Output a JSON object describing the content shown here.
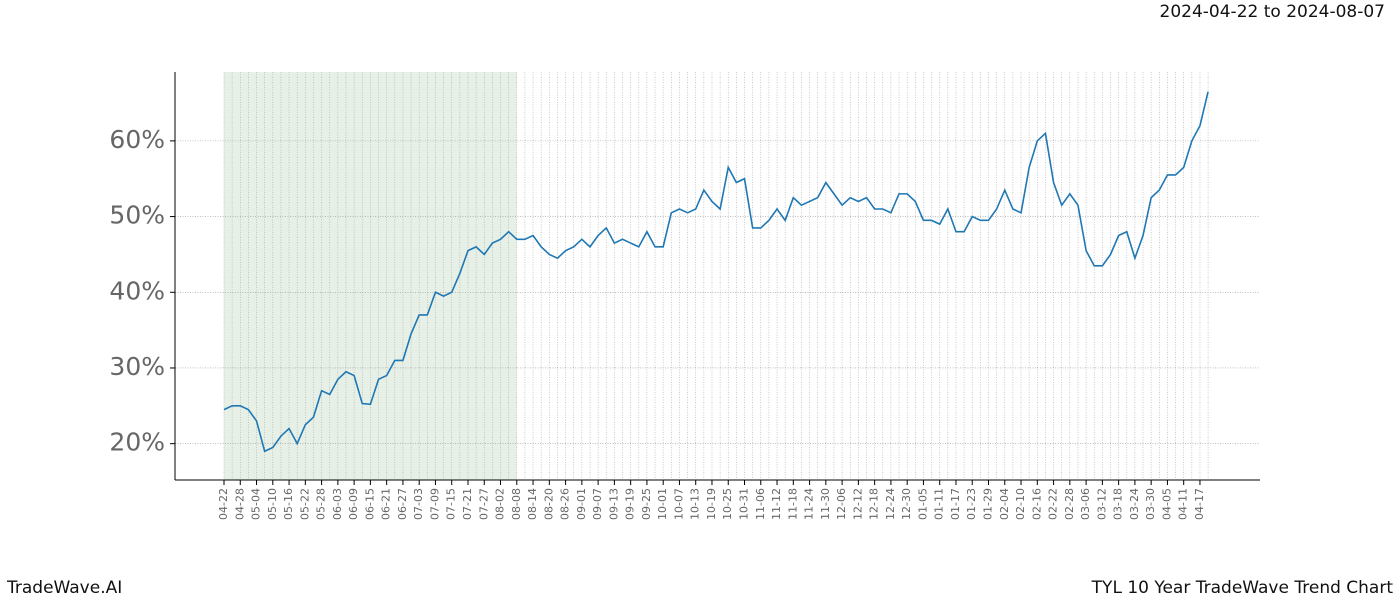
{
  "chart_data": {
    "type": "line",
    "subtitle": "2024-04-22 to 2024-08-07",
    "footer_left": "TradeWave.AI",
    "footer_right": "TYL 10 Year TradeWave Trend Chart",
    "categories": [
      "04-22",
      null,
      "04-28",
      null,
      "05-04",
      null,
      "05-10",
      null,
      "05-16",
      null,
      "05-22",
      null,
      "05-28",
      null,
      "06-03",
      null,
      "06-09",
      null,
      "06-15",
      null,
      "06-21",
      null,
      "06-27",
      null,
      "07-03",
      null,
      "07-09",
      null,
      "07-15",
      null,
      "07-21",
      null,
      "07-27",
      null,
      "08-02",
      null,
      "08-08",
      null,
      "08-14",
      null,
      "08-20",
      null,
      "08-26",
      null,
      "09-01",
      null,
      "09-07",
      null,
      "09-13",
      null,
      "09-19",
      null,
      "09-25",
      null,
      "10-01",
      null,
      "10-07",
      null,
      "10-13",
      null,
      "10-19",
      null,
      "10-25",
      null,
      "10-31",
      null,
      "11-06",
      null,
      "11-12",
      null,
      "11-18",
      null,
      "11-24",
      null,
      "11-30",
      null,
      "12-06",
      null,
      "12-12",
      null,
      "12-18",
      null,
      "12-24",
      null,
      "12-30",
      null,
      "01-05",
      null,
      "01-11",
      null,
      "01-17",
      null,
      "01-23",
      null,
      "01-29",
      null,
      "02-04",
      null,
      "02-10",
      null,
      "02-16",
      null,
      "02-22",
      null,
      "02-28",
      null,
      "03-06",
      null,
      "03-12",
      null,
      "03-18",
      null,
      "03-24",
      null,
      "03-30",
      null,
      "04-05",
      null,
      "04-11",
      null,
      "04-17",
      null
    ],
    "series": [
      {
        "color": "#1f77b4",
        "values": [
          24.5,
          25,
          25,
          24.5,
          23,
          19,
          19.5,
          21,
          22,
          20,
          22.5,
          23.5,
          27,
          26.5,
          28.5,
          29.5,
          29,
          25.3,
          25.2,
          28.5,
          29,
          31,
          31,
          34.5,
          37,
          37,
          40,
          39.5,
          40,
          42.5,
          45.5,
          46,
          45,
          46.5,
          47,
          48,
          47,
          47,
          47.5,
          46,
          45,
          44.5,
          45.5,
          46,
          47,
          46,
          47.5,
          48.5,
          46.5,
          47,
          46.5,
          46,
          48,
          46,
          46,
          50.5,
          51,
          50.5,
          51,
          53.5,
          52,
          51,
          56.5,
          54.5,
          55,
          48.5,
          48.5,
          49.5,
          51,
          49.5,
          52.5,
          51.5,
          52,
          52.5,
          54.5,
          53,
          51.5,
          52.5,
          52,
          52.5,
          51,
          51,
          50.5,
          53,
          53,
          52,
          49.5,
          49.5,
          49,
          51,
          48,
          48,
          50,
          49.5,
          49.5,
          51,
          53.5,
          51,
          50.5,
          56.5,
          60,
          61,
          54.5,
          51.5,
          53,
          51.5,
          45.5,
          43.5,
          43.5,
          45,
          47.5,
          48,
          44.5,
          47.5,
          52.5,
          53.5,
          55.5,
          55.5,
          56.5,
          60,
          62,
          66.5
        ]
      }
    ],
    "shade": {
      "from": "04-22",
      "to": "08-08",
      "color": "#e6f0e6"
    },
    "ylim": [
      15.2,
      69.1
    ],
    "yticks": [
      {
        "value": 20,
        "label": "20%"
      },
      {
        "value": 30,
        "label": "30%"
      },
      {
        "value": 40,
        "label": "40%"
      },
      {
        "value": 50,
        "label": "50%"
      },
      {
        "value": 60,
        "label": "60%"
      }
    ],
    "grid": true
  }
}
